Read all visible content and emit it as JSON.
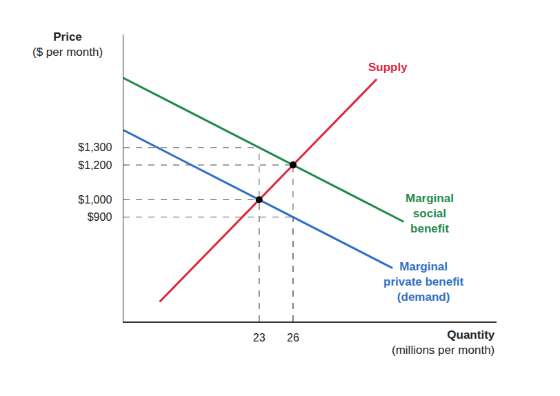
{
  "chart_data": {
    "type": "line",
    "xlabel": "Quantity\n(millions per month)",
    "ylabel": "Price\n($ per month)",
    "xlim": [
      11,
      44
    ],
    "xticks": [
      23,
      26
    ],
    "ylim": [
      300,
      1950
    ],
    "yticks": [
      {
        "value": 900,
        "label": "$900"
      },
      {
        "value": 1000,
        "label": "$1,000"
      },
      {
        "value": 1200,
        "label": "$1,200"
      },
      {
        "value": 1300,
        "label": "$1,300"
      }
    ],
    "grid": false,
    "series": [
      {
        "name": "Supply",
        "color": "#e0243c",
        "x": [
          14.2,
          23,
          26,
          33.4
        ],
        "values": [
          413,
          1000,
          1200,
          1693
        ]
      },
      {
        "name": "Marginal\nsocial\nbenefit",
        "color": "#1f8a4c",
        "x": [
          11,
          23,
          26,
          35.8
        ],
        "values": [
          1700,
          1300,
          1200,
          873
        ]
      },
      {
        "name": "Marginal\nprivate benefit\n(demand)",
        "color": "#2f6fc6",
        "x": [
          11,
          23,
          26,
          34.8
        ],
        "values": [
          1400,
          1000,
          900,
          607
        ]
      }
    ],
    "points": [
      {
        "x": 23,
        "y": 1000
      },
      {
        "x": 26,
        "y": 1200
      }
    ],
    "guides": [
      {
        "x": 23,
        "y": 1300
      },
      {
        "x": 26,
        "y": 1200
      },
      {
        "x": 23,
        "y": 1000
      },
      {
        "x": 26,
        "y": 900
      }
    ]
  }
}
